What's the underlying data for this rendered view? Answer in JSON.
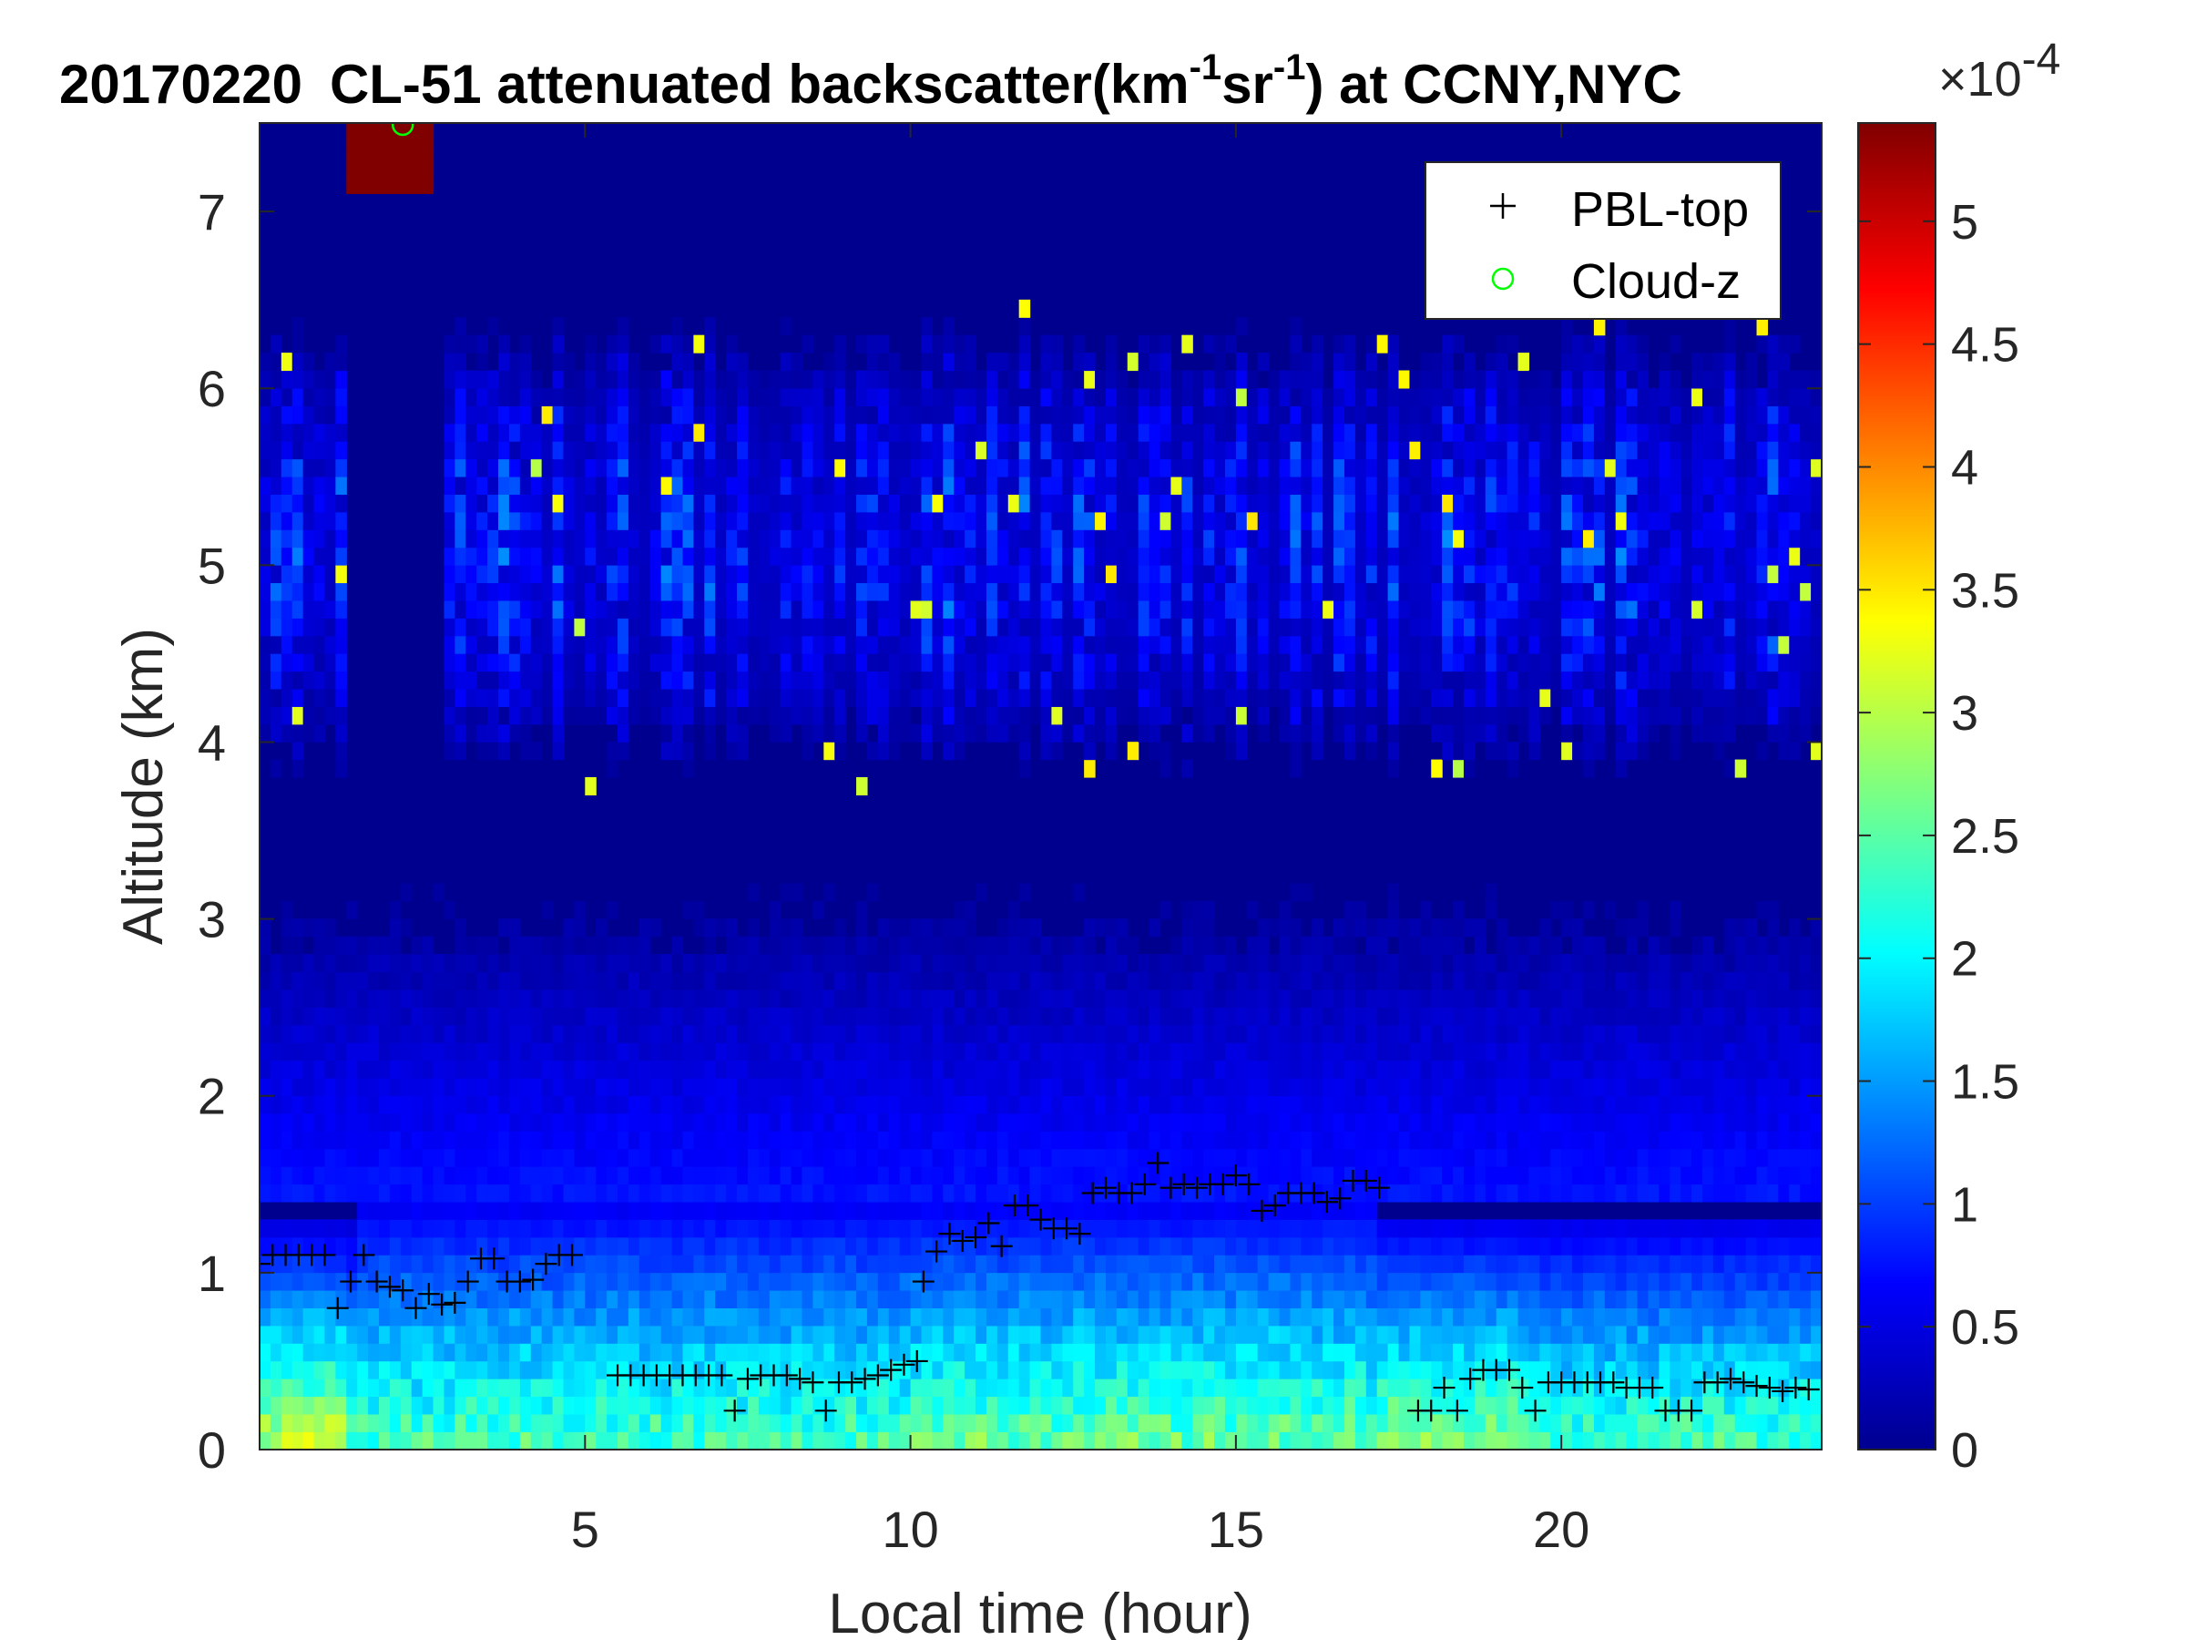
{
  "chart_data": {
    "type": "heatmap",
    "title": {
      "date": "20170220",
      "main": "CL-51 attenuated backscatter(km",
      "sup1": "-1",
      "mid": "sr",
      "sup2": "-1",
      "end": ") at CCNY,NYC"
    },
    "xlabel": "Local time (hour)",
    "ylabel": "Altitude (km)",
    "xlim": [
      0,
      24
    ],
    "ylim": [
      0,
      7.5
    ],
    "xticks": [
      5,
      10,
      15,
      20
    ],
    "yticks": [
      0,
      1,
      2,
      3,
      4,
      5,
      6,
      7
    ],
    "colorbar": {
      "range": [
        0,
        0.00054
      ],
      "ticks": [
        0,
        0.5,
        1,
        1.5,
        2,
        2.5,
        3,
        3.5,
        4,
        4.5,
        5
      ],
      "multiplier_base": "×10",
      "multiplier_exp": "-4",
      "colormap": "jet"
    },
    "legend": {
      "position": "top-right",
      "entries": [
        {
          "label": "PBL-top",
          "marker": "+",
          "color": "#000000"
        },
        {
          "label": "Cloud-z",
          "marker": "o",
          "color": "#00ff00"
        }
      ]
    },
    "series": [
      {
        "name": "PBL-top",
        "x": [
          0.0,
          0.2,
          0.4,
          0.6,
          0.8,
          1.0,
          1.2,
          1.4,
          1.6,
          1.8,
          2.0,
          2.2,
          2.4,
          2.6,
          2.8,
          3.0,
          3.2,
          3.4,
          3.6,
          3.8,
          4.0,
          4.2,
          4.4,
          4.6,
          4.8,
          5.5,
          5.7,
          5.9,
          6.1,
          6.3,
          6.5,
          6.7,
          6.9,
          7.1,
          7.3,
          7.5,
          7.7,
          7.9,
          8.1,
          8.3,
          8.5,
          8.7,
          8.9,
          9.1,
          9.3,
          9.5,
          9.7,
          9.9,
          10.1,
          10.2,
          10.4,
          10.6,
          10.8,
          11.0,
          11.2,
          11.4,
          11.6,
          11.8,
          12.0,
          12.2,
          12.4,
          12.6,
          12.8,
          13.0,
          13.2,
          13.4,
          13.6,
          13.8,
          14.0,
          14.2,
          14.4,
          14.6,
          14.8,
          15.0,
          15.2,
          15.4,
          15.6,
          15.8,
          16.0,
          16.2,
          16.4,
          16.6,
          16.8,
          17.0,
          17.2,
          17.8,
          18.0,
          18.2,
          18.4,
          18.6,
          18.8,
          19.0,
          19.2,
          19.4,
          19.6,
          19.8,
          20.0,
          20.2,
          20.4,
          20.6,
          20.8,
          21.0,
          21.2,
          21.4,
          21.6,
          21.8,
          22.0,
          22.2,
          22.4,
          22.6,
          22.8,
          23.0,
          23.2,
          23.4,
          23.6,
          23.8
        ],
        "y": [
          1.05,
          1.1,
          1.1,
          1.1,
          1.1,
          1.1,
          0.8,
          0.95,
          1.1,
          0.95,
          0.92,
          0.9,
          0.8,
          0.88,
          0.82,
          0.83,
          0.95,
          1.08,
          1.08,
          0.95,
          0.95,
          0.96,
          1.05,
          1.1,
          1.1,
          0.42,
          0.42,
          0.42,
          0.42,
          0.42,
          0.42,
          0.42,
          0.42,
          0.42,
          0.22,
          0.4,
          0.42,
          0.42,
          0.42,
          0.4,
          0.38,
          0.22,
          0.38,
          0.38,
          0.4,
          0.42,
          0.45,
          0.48,
          0.5,
          0.95,
          1.12,
          1.22,
          1.18,
          1.2,
          1.28,
          1.15,
          1.38,
          1.38,
          1.3,
          1.25,
          1.25,
          1.22,
          1.45,
          1.48,
          1.45,
          1.45,
          1.5,
          1.62,
          1.48,
          1.5,
          1.48,
          1.5,
          1.5,
          1.55,
          1.5,
          1.35,
          1.38,
          1.45,
          1.45,
          1.45,
          1.4,
          1.42,
          1.52,
          1.52,
          1.48,
          0.22,
          0.22,
          0.35,
          0.22,
          0.4,
          0.45,
          0.45,
          0.45,
          0.35,
          0.22,
          0.38,
          0.38,
          0.38,
          0.38,
          0.38,
          0.38,
          0.35,
          0.35,
          0.35,
          0.22,
          0.22,
          0.22,
          0.38,
          0.38,
          0.4,
          0.38,
          0.36,
          0.35,
          0.33,
          0.35,
          0.34
        ]
      },
      {
        "name": "Cloud-z",
        "x": [
          2.2
        ],
        "y": [
          7.5
        ]
      }
    ],
    "features": [
      {
        "description": "cloud patch",
        "x_range": [
          1.25,
          2.75
        ],
        "y_range": [
          7.1,
          7.5
        ],
        "value": 0.00054
      },
      {
        "description": "aerosol layer",
        "x_range": [
          0,
          24
        ],
        "y_range": [
          3.7,
          6.4
        ]
      },
      {
        "description": "boundary layer",
        "x_range": [
          0,
          24
        ],
        "y_range": [
          0,
          1.6
        ]
      }
    ]
  }
}
